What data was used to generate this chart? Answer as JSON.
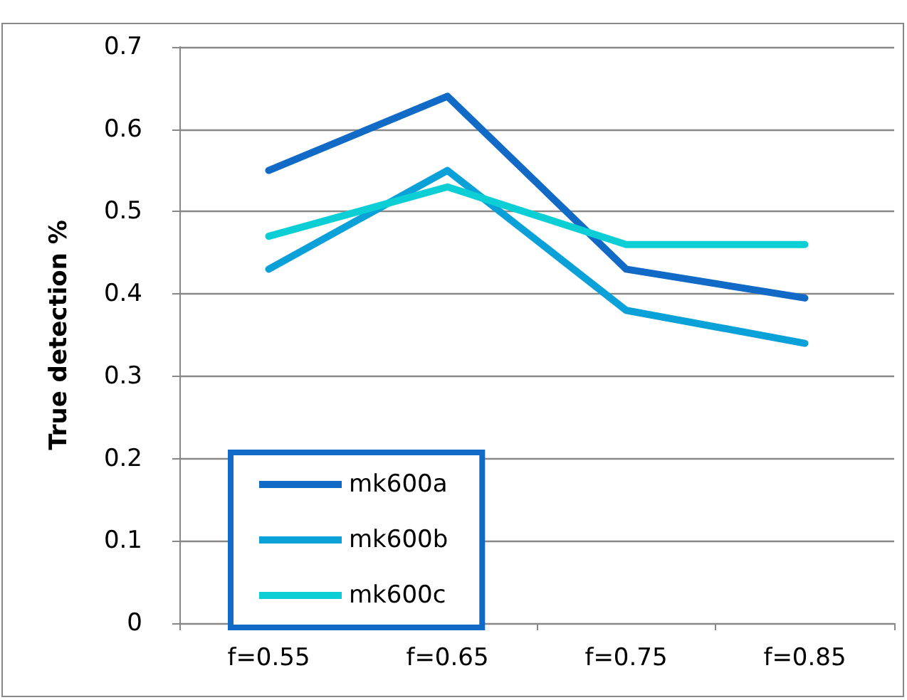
{
  "chart_data": {
    "type": "line",
    "ylabel": "True detection %",
    "categories": [
      "f=0.55",
      "f=0.65",
      "f=0.75",
      "f=0.85"
    ],
    "series": [
      {
        "name": "mk600a",
        "color": "#106ac6",
        "values": [
          0.55,
          0.64,
          0.43,
          0.395
        ]
      },
      {
        "name": "mk600b",
        "color": "#0aa0d8",
        "values": [
          0.43,
          0.55,
          0.38,
          0.34
        ]
      },
      {
        "name": "mk600c",
        "color": "#0ccfd6",
        "values": [
          0.47,
          0.53,
          0.46,
          0.46
        ]
      }
    ],
    "ylim": [
      0,
      0.7
    ],
    "yticks": [
      0,
      0.1,
      0.2,
      0.3,
      0.4,
      0.5,
      0.6,
      0.7
    ],
    "grid": "y",
    "legend": "bottom left",
    "marker": "none",
    "line_style": "solid"
  }
}
